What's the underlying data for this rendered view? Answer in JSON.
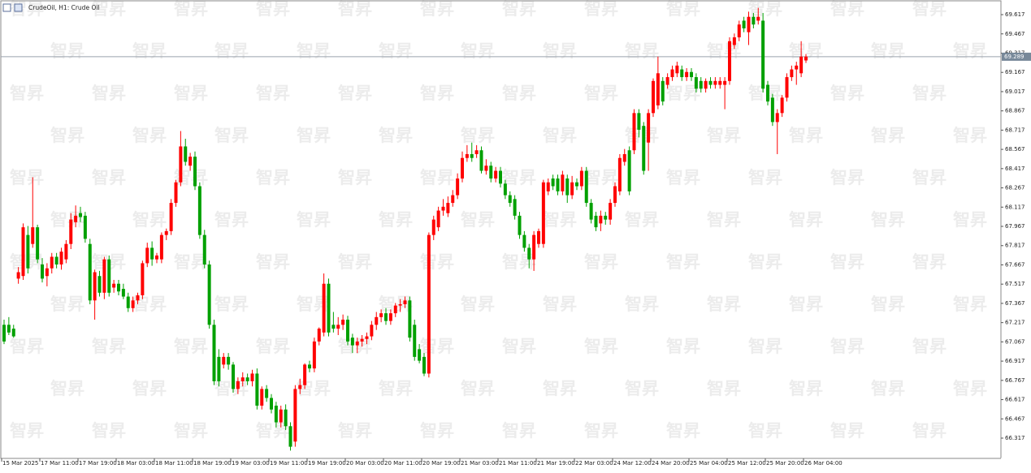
{
  "chart_data": {
    "type": "candlestick",
    "title": "CrudeOil, H1:  Crude Oil",
    "watermark": "智昇",
    "up_color": "#ff0000",
    "down_color": "#00a000",
    "current_price": 69.289,
    "ylim": [
      66.159,
      69.731
    ],
    "yticks": [
      69.617,
      69.467,
      69.317,
      69.167,
      69.017,
      68.867,
      68.717,
      68.567,
      68.417,
      68.267,
      68.117,
      67.967,
      67.817,
      67.667,
      67.517,
      67.367,
      67.217,
      67.067,
      66.917,
      66.767,
      66.617,
      66.467,
      66.317
    ],
    "categories": [
      "15 Mar 2025",
      null,
      null,
      null,
      null,
      null,
      null,
      null,
      "17 Mar 11:00",
      null,
      null,
      null,
      null,
      null,
      null,
      null,
      "17 Mar 19:00",
      null,
      null,
      null,
      null,
      null,
      null,
      null,
      "18 Mar 03:00",
      null,
      null,
      null,
      null,
      null,
      null,
      null,
      "18 Mar 11:00",
      null,
      null,
      null,
      null,
      null,
      null,
      null,
      "18 Mar 19:00",
      null,
      null,
      null,
      null,
      null,
      null,
      null,
      "19 Mar 03:00",
      null,
      null,
      null,
      null,
      null,
      null,
      null,
      "19 Mar 11:00",
      null,
      null,
      null,
      null,
      null,
      null,
      null,
      "19 Mar 19:00",
      null,
      null,
      null,
      null,
      null,
      null,
      null,
      "20 Mar 03:00",
      null,
      null,
      null,
      null,
      null,
      null,
      null,
      "20 Mar 11:00",
      null,
      null,
      null,
      null,
      null,
      null,
      null,
      "20 Mar 19:00",
      null,
      null,
      null,
      null,
      null,
      null,
      null,
      "21 Mar 03:00",
      null,
      null,
      null,
      null,
      null,
      null,
      null,
      "21 Mar 11:00",
      null,
      null,
      null,
      null,
      null,
      null,
      null,
      "21 Mar 19:00",
      null,
      null,
      null,
      null,
      null,
      null,
      null,
      "22 Mar 03:00",
      null,
      null,
      null,
      null,
      null,
      null,
      null,
      "24 Mar 12:00",
      null,
      null,
      null,
      null,
      null,
      null,
      null,
      "24 Mar 20:00",
      null,
      null,
      null,
      null,
      null,
      null,
      null,
      "25 Mar 04:00",
      null,
      null,
      null,
      null,
      null,
      null,
      null,
      "25 Mar 12:00",
      null,
      null,
      null,
      null,
      null,
      null,
      null,
      "25 Mar 20:00",
      null,
      null,
      null,
      null,
      null,
      null,
      null,
      "26 Mar 04:00"
    ],
    "candles": [
      [
        67.2,
        67.24,
        67.05,
        67.07
      ],
      [
        67.2,
        67.26,
        67.12,
        67.14
      ],
      [
        67.17,
        67.2,
        67.1,
        67.11
      ],
      [
        67.56,
        67.65,
        67.52,
        67.61
      ],
      [
        67.58,
        67.99,
        67.55,
        67.96
      ],
      [
        67.9,
        67.97,
        67.6,
        67.64
      ],
      [
        67.83,
        68.35,
        67.8,
        67.96
      ],
      [
        67.96,
        67.98,
        67.68,
        67.71
      ],
      [
        67.67,
        67.72,
        67.53,
        67.56
      ],
      [
        67.58,
        67.68,
        67.5,
        67.64
      ],
      [
        67.64,
        67.76,
        67.6,
        67.73
      ],
      [
        67.73,
        67.76,
        67.64,
        67.67
      ],
      [
        67.67,
        67.8,
        67.63,
        67.77
      ],
      [
        67.71,
        67.86,
        67.68,
        67.83
      ],
      [
        67.83,
        68.07,
        67.79,
        68.02
      ],
      [
        68.0,
        68.13,
        67.96,
        68.05
      ],
      [
        68.07,
        68.12,
        68.0,
        68.04
      ],
      [
        68.05,
        68.08,
        67.84,
        67.87
      ],
      [
        67.83,
        67.87,
        67.36,
        67.39
      ],
      [
        67.39,
        67.63,
        67.24,
        67.61
      ],
      [
        67.58,
        67.62,
        67.42,
        67.45
      ],
      [
        67.45,
        67.73,
        67.4,
        67.71
      ],
      [
        67.71,
        67.74,
        67.42,
        67.45
      ],
      [
        67.49,
        67.55,
        67.45,
        67.52
      ],
      [
        67.52,
        67.55,
        67.43,
        67.46
      ],
      [
        67.48,
        67.52,
        67.4,
        67.42
      ],
      [
        67.42,
        67.45,
        67.3,
        67.33
      ],
      [
        67.33,
        67.42,
        67.3,
        67.39
      ],
      [
        67.39,
        67.45,
        67.36,
        67.43
      ],
      [
        67.43,
        67.7,
        67.4,
        67.68
      ],
      [
        67.68,
        67.84,
        67.65,
        67.8
      ],
      [
        67.8,
        67.85,
        67.66,
        67.71
      ],
      [
        67.71,
        67.76,
        67.68,
        67.74
      ],
      [
        67.71,
        67.92,
        67.68,
        67.9
      ],
      [
        67.9,
        67.95,
        67.86,
        67.93
      ],
      [
        67.93,
        68.18,
        67.9,
        68.15
      ],
      [
        68.15,
        68.33,
        68.12,
        68.31
      ],
      [
        68.31,
        68.71,
        68.28,
        68.59
      ],
      [
        68.59,
        68.65,
        68.44,
        68.47
      ],
      [
        68.44,
        68.54,
        68.4,
        68.51
      ],
      [
        68.51,
        68.55,
        68.25,
        68.28
      ],
      [
        68.28,
        68.31,
        67.87,
        67.9
      ],
      [
        67.9,
        67.94,
        67.64,
        67.67
      ],
      [
        67.67,
        67.7,
        67.17,
        67.2
      ],
      [
        67.2,
        67.24,
        66.73,
        66.76
      ],
      [
        66.95,
        67.01,
        66.72,
        66.76
      ],
      [
        66.89,
        66.98,
        66.86,
        66.95
      ],
      [
        66.95,
        66.98,
        66.85,
        66.89
      ],
      [
        66.89,
        66.91,
        66.67,
        66.7
      ],
      [
        66.7,
        66.79,
        66.66,
        66.76
      ],
      [
        66.76,
        66.83,
        66.72,
        66.79
      ],
      [
        66.79,
        66.82,
        66.73,
        66.76
      ],
      [
        66.76,
        66.85,
        66.72,
        66.82
      ],
      [
        66.82,
        66.86,
        66.54,
        66.57
      ],
      [
        66.57,
        66.72,
        66.54,
        66.7
      ],
      [
        66.7,
        66.73,
        66.6,
        66.63
      ],
      [
        66.63,
        66.66,
        66.51,
        66.54
      ],
      [
        66.57,
        66.6,
        66.4,
        66.44
      ],
      [
        66.44,
        66.57,
        66.4,
        66.54
      ],
      [
        66.54,
        66.58,
        66.38,
        66.41
      ],
      [
        66.41,
        66.44,
        66.22,
        66.25
      ],
      [
        66.29,
        66.73,
        66.25,
        66.7
      ],
      [
        66.7,
        66.78,
        66.66,
        66.73
      ],
      [
        66.73,
        66.9,
        66.7,
        66.89
      ],
      [
        66.89,
        66.92,
        66.83,
        66.86
      ],
      [
        66.86,
        67.1,
        66.83,
        67.07
      ],
      [
        67.07,
        67.18,
        67.04,
        67.17
      ],
      [
        67.14,
        67.6,
        67.11,
        67.52
      ],
      [
        67.52,
        67.56,
        67.11,
        67.14
      ],
      [
        67.2,
        67.3,
        67.14,
        67.17
      ],
      [
        67.17,
        67.26,
        67.12,
        67.2
      ],
      [
        67.2,
        67.28,
        67.16,
        67.24
      ],
      [
        67.24,
        67.27,
        67.04,
        67.07
      ],
      [
        67.1,
        67.13,
        66.98,
        67.04
      ],
      [
        67.04,
        67.1,
        66.98,
        67.07
      ],
      [
        67.07,
        67.12,
        67.03,
        67.09
      ],
      [
        67.09,
        67.14,
        67.05,
        67.11
      ],
      [
        67.11,
        67.23,
        67.08,
        67.2
      ],
      [
        67.2,
        67.3,
        67.16,
        67.26
      ],
      [
        67.26,
        67.32,
        67.22,
        67.29
      ],
      [
        67.29,
        67.33,
        67.2,
        67.23
      ],
      [
        67.23,
        67.32,
        67.2,
        67.29
      ],
      [
        67.29,
        67.37,
        67.26,
        67.35
      ],
      [
        67.35,
        67.4,
        67.3,
        67.36
      ],
      [
        67.36,
        67.42,
        67.33,
        67.39
      ],
      [
        67.39,
        67.42,
        67.07,
        67.1
      ],
      [
        67.2,
        67.24,
        66.92,
        66.95
      ],
      [
        67.01,
        67.05,
        66.9,
        66.92
      ],
      [
        66.95,
        66.98,
        66.8,
        66.82
      ],
      [
        66.82,
        67.92,
        66.79,
        67.9
      ],
      [
        67.9,
        68.05,
        67.86,
        68.02
      ],
      [
        67.96,
        68.12,
        67.93,
        68.09
      ],
      [
        68.09,
        68.18,
        68.05,
        68.12
      ],
      [
        68.07,
        68.2,
        68.04,
        68.15
      ],
      [
        68.15,
        68.25,
        68.12,
        68.21
      ],
      [
        68.21,
        68.38,
        68.18,
        68.34
      ],
      [
        68.34,
        68.55,
        68.31,
        68.5
      ],
      [
        68.5,
        68.6,
        68.47,
        68.53
      ],
      [
        68.53,
        68.62,
        68.47,
        68.5
      ],
      [
        68.53,
        68.6,
        68.5,
        68.56
      ],
      [
        68.56,
        68.59,
        68.38,
        68.4
      ],
      [
        68.4,
        68.49,
        68.37,
        68.44
      ],
      [
        68.44,
        68.47,
        68.31,
        68.34
      ],
      [
        68.34,
        68.43,
        68.31,
        68.4
      ],
      [
        68.4,
        68.43,
        68.27,
        68.3
      ],
      [
        68.3,
        68.33,
        68.18,
        68.21
      ],
      [
        68.21,
        68.24,
        68.12,
        68.15
      ],
      [
        68.18,
        68.21,
        68.02,
        68.05
      ],
      [
        68.05,
        68.08,
        67.87,
        67.9
      ],
      [
        67.9,
        67.93,
        67.77,
        67.8
      ],
      [
        67.8,
        67.83,
        67.64,
        67.71
      ],
      [
        67.71,
        67.93,
        67.62,
        67.9
      ],
      [
        67.83,
        67.95,
        67.8,
        67.93
      ],
      [
        67.83,
        68.33,
        67.8,
        68.31
      ],
      [
        68.24,
        68.34,
        68.21,
        68.31
      ],
      [
        68.34,
        68.37,
        68.25,
        68.28
      ],
      [
        68.34,
        68.37,
        68.21,
        68.24
      ],
      [
        68.24,
        68.4,
        68.21,
        68.37
      ],
      [
        68.34,
        68.37,
        68.15,
        68.21
      ],
      [
        68.21,
        68.36,
        68.18,
        68.31
      ],
      [
        68.31,
        68.34,
        68.25,
        68.28
      ],
      [
        68.28,
        68.43,
        68.25,
        68.4
      ],
      [
        68.4,
        68.43,
        68.12,
        68.15
      ],
      [
        68.15,
        68.18,
        67.99,
        68.02
      ],
      [
        68.05,
        68.08,
        67.93,
        67.96
      ],
      [
        67.99,
        68.09,
        67.93,
        68.05
      ],
      [
        68.05,
        68.08,
        67.98,
        68.02
      ],
      [
        68.02,
        68.18,
        67.98,
        68.15
      ],
      [
        68.15,
        68.31,
        68.12,
        68.28
      ],
      [
        68.24,
        68.53,
        68.21,
        68.5
      ],
      [
        68.47,
        68.57,
        68.44,
        68.53
      ],
      [
        68.56,
        68.59,
        68.21,
        68.24
      ],
      [
        68.56,
        68.88,
        68.53,
        68.85
      ],
      [
        68.85,
        68.88,
        68.66,
        68.72
      ],
      [
        68.75,
        68.78,
        68.37,
        68.4
      ],
      [
        68.62,
        68.88,
        68.4,
        68.85
      ],
      [
        68.85,
        69.12,
        68.82,
        69.1
      ],
      [
        68.91,
        69.29,
        68.88,
        69.16
      ],
      [
        69.1,
        69.13,
        68.91,
        68.94
      ],
      [
        69.07,
        69.16,
        69.04,
        69.13
      ],
      [
        69.13,
        69.22,
        69.1,
        69.19
      ],
      [
        69.16,
        69.25,
        69.13,
        69.22
      ],
      [
        69.19,
        69.22,
        69.1,
        69.13
      ],
      [
        69.13,
        69.2,
        69.1,
        69.17
      ],
      [
        69.17,
        69.2,
        69.1,
        69.13
      ],
      [
        69.13,
        69.16,
        69.01,
        69.04
      ],
      [
        69.1,
        69.13,
        69.01,
        69.04
      ],
      [
        69.04,
        69.12,
        69.01,
        69.1
      ],
      [
        69.1,
        69.13,
        69.04,
        69.07
      ],
      [
        69.07,
        69.13,
        69.04,
        69.1
      ],
      [
        69.07,
        69.13,
        69.04,
        69.1
      ],
      [
        69.07,
        69.13,
        68.88,
        69.1
      ],
      [
        69.1,
        69.44,
        69.07,
        69.41
      ],
      [
        69.38,
        69.47,
        69.35,
        69.44
      ],
      [
        69.44,
        69.57,
        69.41,
        69.54
      ],
      [
        69.57,
        69.6,
        69.48,
        69.51
      ],
      [
        69.48,
        69.64,
        69.38,
        69.6
      ],
      [
        69.6,
        69.63,
        69.51,
        69.54
      ],
      [
        69.57,
        69.67,
        69.54,
        69.6
      ],
      [
        69.57,
        69.63,
        69.01,
        69.04
      ],
      [
        69.07,
        69.1,
        68.91,
        68.94
      ],
      [
        68.97,
        69.0,
        68.75,
        68.78
      ],
      [
        68.78,
        68.88,
        68.53,
        68.85
      ],
      [
        68.85,
        68.99,
        68.82,
        68.97
      ],
      [
        68.97,
        69.16,
        68.94,
        69.13
      ],
      [
        69.13,
        69.22,
        69.1,
        69.19
      ],
      [
        69.19,
        69.25,
        69.07,
        69.22
      ],
      [
        69.16,
        69.41,
        69.13,
        69.29
      ],
      [
        69.26,
        69.31,
        69.24,
        69.29
      ]
    ]
  }
}
